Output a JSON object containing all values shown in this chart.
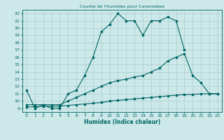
{
  "title": "Courbe de l'humidex pour Caransebes",
  "xlabel": "Humidex (Indice chaleur)",
  "bg_color": "#cce8e8",
  "grid_color": "#aacece",
  "line_color": "#006666",
  "xlim": [
    -0.5,
    23.5
  ],
  "ylim": [
    8.5,
    22.5
  ],
  "xticks": [
    0,
    1,
    2,
    3,
    4,
    5,
    6,
    7,
    8,
    9,
    10,
    11,
    12,
    13,
    14,
    15,
    16,
    17,
    18,
    19,
    20,
    21,
    22,
    23
  ],
  "yticks": [
    9,
    10,
    11,
    12,
    13,
    14,
    15,
    16,
    17,
    18,
    19,
    20,
    21,
    22
  ],
  "line1_x": [
    0,
    1,
    2,
    3,
    4,
    5,
    6,
    7,
    8,
    9,
    10,
    11,
    12,
    13,
    14,
    15,
    16,
    17,
    18,
    19
  ],
  "line1_y": [
    11.5,
    9.0,
    9.5,
    9.0,
    9.0,
    11.0,
    11.5,
    13.5,
    16.0,
    19.5,
    20.5,
    22.0,
    21.0,
    21.0,
    19.0,
    21.0,
    21.0,
    21.5,
    21.0,
    17.0
  ],
  "line2_x": [
    0,
    1,
    2,
    3,
    4,
    5,
    6,
    7,
    8,
    9,
    10,
    11,
    12,
    13,
    14,
    15,
    16,
    17,
    18,
    19,
    20,
    21,
    22,
    23
  ],
  "line2_y": [
    9.5,
    9.5,
    9.5,
    9.5,
    9.5,
    10.0,
    10.5,
    11.0,
    11.5,
    12.0,
    12.5,
    12.8,
    13.0,
    13.3,
    13.5,
    14.0,
    14.5,
    15.5,
    16.0,
    16.5,
    13.5,
    12.5,
    11.0,
    11.0
  ],
  "line3_x": [
    0,
    1,
    2,
    3,
    4,
    5,
    6,
    7,
    8,
    9,
    10,
    11,
    12,
    13,
    14,
    15,
    16,
    17,
    18,
    19,
    20,
    21,
    22,
    23
  ],
  "line3_y": [
    9.2,
    9.2,
    9.3,
    9.3,
    9.3,
    9.4,
    9.5,
    9.6,
    9.7,
    9.8,
    10.0,
    10.1,
    10.2,
    10.3,
    10.4,
    10.5,
    10.6,
    10.7,
    10.8,
    10.9,
    10.9,
    11.0,
    11.0,
    11.0
  ]
}
